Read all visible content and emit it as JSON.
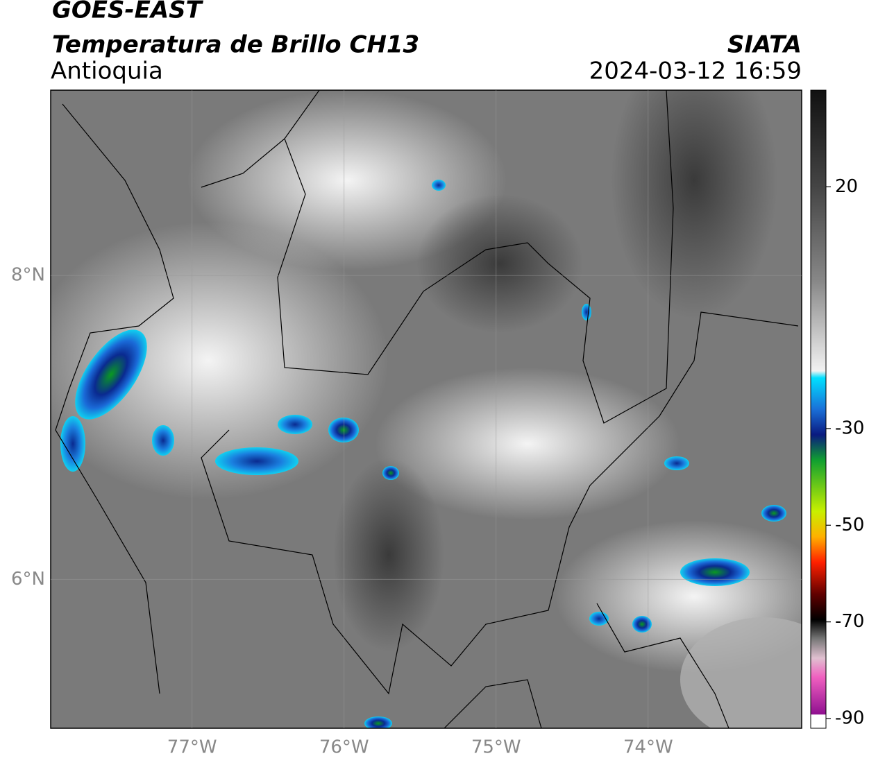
{
  "header": {
    "satellite": "GOES-EAST",
    "product": "Temperatura de Brillo CH13",
    "region": "Antioquia",
    "agency": "SIATA",
    "timestamp": "2024-03-12 16:59"
  },
  "map": {
    "xlim": [
      -77.93,
      -72.99
    ],
    "ylim": [
      5.02,
      9.22
    ],
    "xticks": [
      {
        "value": -77,
        "label": "77°W"
      },
      {
        "value": -76,
        "label": "76°W"
      },
      {
        "value": -75,
        "label": "75°W"
      },
      {
        "value": -74,
        "label": "74°W"
      }
    ],
    "yticks": [
      {
        "value": 8,
        "label": "8°N"
      },
      {
        "value": 6,
        "label": "6°N"
      }
    ],
    "grid": true
  },
  "colorbar": {
    "lim": [
      -92,
      40
    ],
    "ticks": [
      20,
      -30,
      -50,
      -70,
      -90
    ]
  }
}
